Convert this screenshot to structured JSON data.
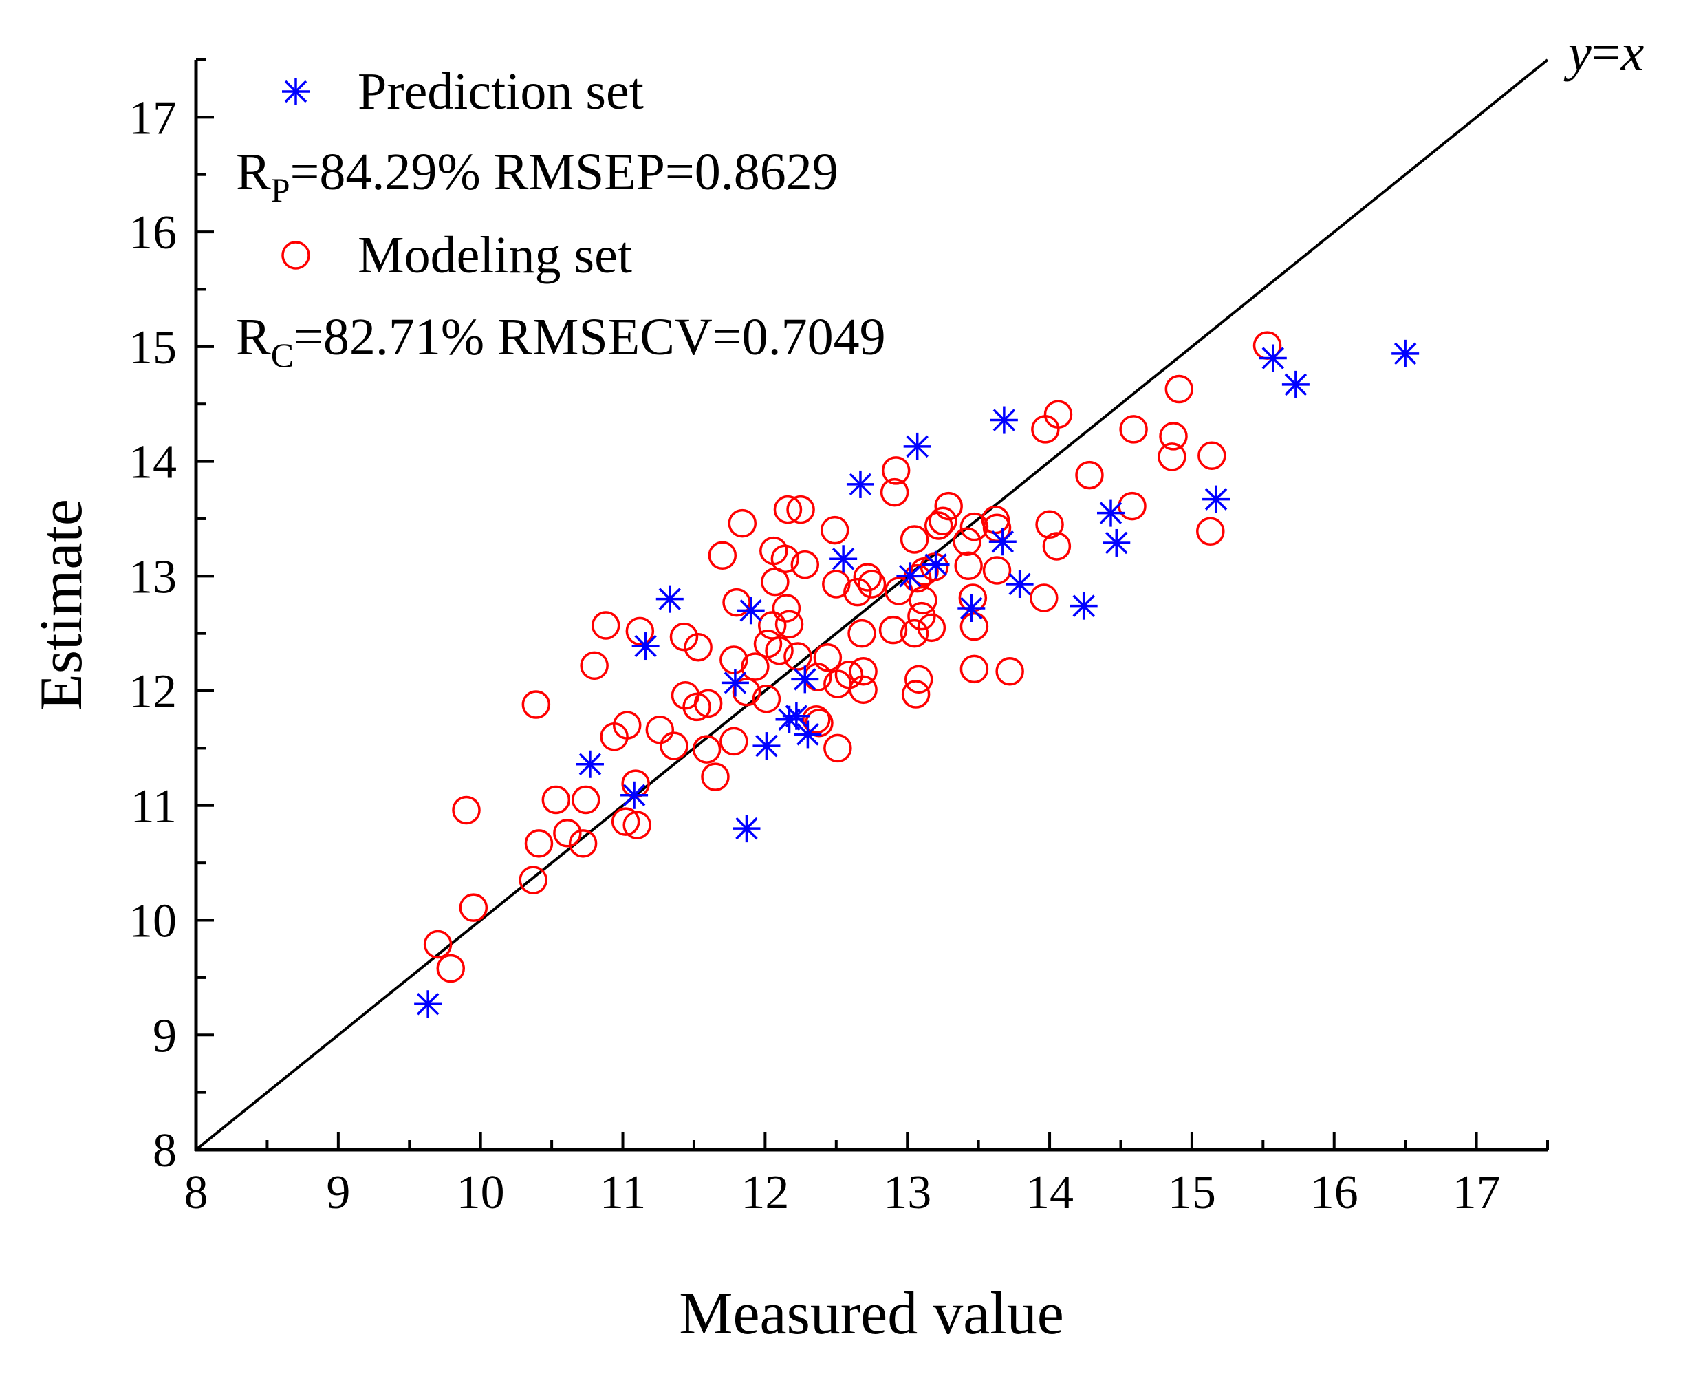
{
  "chart_data": {
    "type": "scatter",
    "xlabel": "Measured value",
    "ylabel": "Estimate",
    "xlim": [
      8,
      17.5
    ],
    "ylim": [
      8,
      17.5
    ],
    "xticks": [
      8,
      9,
      10,
      11,
      12,
      13,
      14,
      15,
      16,
      17
    ],
    "yticks": [
      8,
      9,
      10,
      11,
      12,
      13,
      14,
      15,
      16,
      17
    ],
    "reference_line": {
      "label_y": "y",
      "label_eq": "=",
      "label_x": "x",
      "from": [
        8,
        8
      ],
      "to": [
        17.5,
        17.5
      ]
    },
    "legend": {
      "prediction": {
        "label": "Prediction set",
        "stat_symbol": "R",
        "stat_sub": "P",
        "stat_rest": "=84.29% RMSEP=0.8629"
      },
      "modeling": {
        "label": "Modeling set",
        "stat_symbol": "R",
        "stat_sub": "C",
        "stat_rest": "=82.71% RMSECV=0.7049"
      }
    },
    "series": [
      {
        "name": "Prediction set",
        "marker": "asterisk",
        "color": "#0000ff",
        "points": [
          [
            9.63,
            9.27
          ],
          [
            10.77,
            11.36
          ],
          [
            11.08,
            11.09
          ],
          [
            11.16,
            12.39
          ],
          [
            11.33,
            12.8
          ],
          [
            11.79,
            12.07
          ],
          [
            11.87,
            10.8
          ],
          [
            11.9,
            12.7
          ],
          [
            12.01,
            11.52
          ],
          [
            12.17,
            11.75
          ],
          [
            12.22,
            11.78
          ],
          [
            12.28,
            12.1
          ],
          [
            12.3,
            11.62
          ],
          [
            12.55,
            13.15
          ],
          [
            12.67,
            13.8
          ],
          [
            13.07,
            14.13
          ],
          [
            13.02,
            13.0
          ],
          [
            13.2,
            13.1
          ],
          [
            13.45,
            12.72
          ],
          [
            13.67,
            13.3
          ],
          [
            13.68,
            14.36
          ],
          [
            13.79,
            12.93
          ],
          [
            14.24,
            12.74
          ],
          [
            14.43,
            13.55
          ],
          [
            14.47,
            13.29
          ],
          [
            15.17,
            13.67
          ],
          [
            15.57,
            14.9
          ],
          [
            15.73,
            14.67
          ],
          [
            16.5,
            14.94
          ]
        ]
      },
      {
        "name": "Modeling set",
        "marker": "circle",
        "color": "#ff0000",
        "points": [
          [
            9.7,
            9.79
          ],
          [
            9.79,
            9.58
          ],
          [
            9.9,
            10.96
          ],
          [
            9.95,
            10.11
          ],
          [
            10.37,
            10.35
          ],
          [
            10.39,
            11.88
          ],
          [
            10.41,
            10.67
          ],
          [
            10.53,
            11.05
          ],
          [
            10.61,
            10.76
          ],
          [
            10.72,
            10.67
          ],
          [
            10.74,
            11.05
          ],
          [
            10.8,
            12.22
          ],
          [
            10.88,
            12.57
          ],
          [
            10.94,
            11.6
          ],
          [
            11.03,
            11.7
          ],
          [
            11.02,
            10.86
          ],
          [
            11.1,
            10.83
          ],
          [
            11.09,
            11.19
          ],
          [
            11.12,
            12.52
          ],
          [
            11.26,
            11.66
          ],
          [
            11.36,
            11.52
          ],
          [
            11.43,
            12.47
          ],
          [
            11.44,
            11.96
          ],
          [
            11.52,
            11.86
          ],
          [
            11.53,
            12.38
          ],
          [
            11.6,
            11.89
          ],
          [
            11.59,
            11.49
          ],
          [
            11.65,
            11.25
          ],
          [
            11.7,
            13.18
          ],
          [
            11.78,
            11.56
          ],
          [
            11.78,
            12.27
          ],
          [
            11.8,
            12.77
          ],
          [
            11.84,
            13.46
          ],
          [
            11.87,
            11.99
          ],
          [
            11.93,
            12.21
          ],
          [
            12.01,
            11.93
          ],
          [
            12.02,
            12.41
          ],
          [
            12.05,
            12.57
          ],
          [
            12.06,
            13.22
          ],
          [
            12.07,
            12.95
          ],
          [
            12.1,
            12.35
          ],
          [
            12.14,
            13.15
          ],
          [
            12.15,
            12.72
          ],
          [
            12.16,
            13.58
          ],
          [
            12.17,
            12.58
          ],
          [
            12.23,
            12.3
          ],
          [
            12.25,
            13.58
          ],
          [
            12.28,
            13.1
          ],
          [
            12.36,
            11.75
          ],
          [
            12.38,
            11.72
          ],
          [
            12.37,
            12.12
          ],
          [
            12.44,
            12.29
          ],
          [
            12.49,
            13.4
          ],
          [
            12.5,
            12.93
          ],
          [
            12.51,
            12.06
          ],
          [
            12.51,
            11.5
          ],
          [
            12.59,
            12.14
          ],
          [
            12.65,
            12.86
          ],
          [
            12.68,
            12.5
          ],
          [
            12.69,
            12.17
          ],
          [
            12.69,
            12.01
          ],
          [
            12.72,
            12.99
          ],
          [
            12.75,
            12.93
          ],
          [
            12.9,
            12.53
          ],
          [
            12.91,
            13.73
          ],
          [
            12.92,
            13.92
          ],
          [
            12.94,
            12.87
          ],
          [
            13.05,
            12.5
          ],
          [
            13.05,
            13.32
          ],
          [
            13.06,
            11.97
          ],
          [
            13.07,
            12.98
          ],
          [
            13.08,
            12.1
          ],
          [
            13.1,
            12.65
          ],
          [
            13.11,
            12.79
          ],
          [
            13.12,
            13.04
          ],
          [
            13.17,
            12.55
          ],
          [
            13.19,
            13.08
          ],
          [
            13.22,
            13.44
          ],
          [
            13.25,
            13.48
          ],
          [
            13.29,
            13.61
          ],
          [
            13.42,
            13.3
          ],
          [
            13.43,
            13.09
          ],
          [
            13.46,
            12.81
          ],
          [
            13.47,
            12.56
          ],
          [
            13.47,
            13.43
          ],
          [
            13.47,
            12.19
          ],
          [
            13.62,
            13.49
          ],
          [
            13.63,
            13.42
          ],
          [
            13.63,
            13.05
          ],
          [
            13.72,
            12.17
          ],
          [
            13.96,
            12.81
          ],
          [
            13.97,
            14.28
          ],
          [
            14.0,
            13.45
          ],
          [
            14.05,
            13.26
          ],
          [
            14.06,
            14.41
          ],
          [
            14.28,
            13.88
          ],
          [
            14.58,
            13.61
          ],
          [
            14.59,
            14.28
          ],
          [
            14.86,
            14.04
          ],
          [
            14.87,
            14.22
          ],
          [
            14.91,
            14.63
          ],
          [
            15.13,
            13.39
          ],
          [
            15.14,
            14.05
          ],
          [
            15.53,
            15.01
          ]
        ]
      }
    ]
  }
}
